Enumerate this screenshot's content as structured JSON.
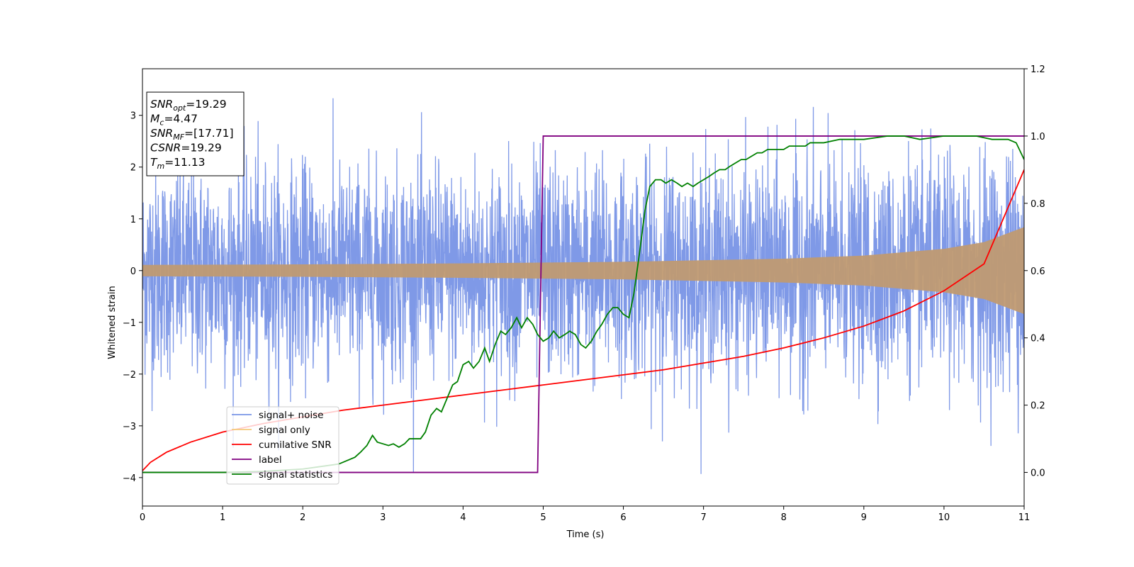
{
  "chart_data": {
    "type": "line",
    "xlabel": "Time (s)",
    "ylabel": "Whitened strain",
    "xlim": [
      0,
      11
    ],
    "ylim": [
      -4.55,
      3.9
    ],
    "y2lim": [
      -0.1,
      1.2
    ],
    "x_ticks": [
      "0",
      "1",
      "2",
      "3",
      "4",
      "5",
      "6",
      "7",
      "8",
      "9",
      "10",
      "11"
    ],
    "y_ticks": [
      "−4",
      "−3",
      "−2",
      "−1",
      "0",
      "1",
      "2",
      "3"
    ],
    "y2_ticks": [
      "0.0",
      "0.2",
      "0.4",
      "0.6",
      "0.8",
      "1.0",
      "1.2"
    ],
    "info_box": {
      "lines": [
        {
          "main": "SNR",
          "sub": "opt",
          "rest": "=19.29"
        },
        {
          "main": "M",
          "sub": "c",
          "rest": "=4.47"
        },
        {
          "main": "SNR",
          "sub": "MF",
          "rest": "=[17.71]"
        },
        {
          "main": "CSNR",
          "sub": "",
          "rest": "=19.29"
        },
        {
          "main": "T",
          "sub": "m",
          "rest": "=11.13"
        }
      ]
    },
    "legend": {
      "position": "lower-left",
      "entries": [
        {
          "label": "signal+ noise",
          "color": "#7894e6"
        },
        {
          "label": "signal only",
          "color": "#f5c97a"
        },
        {
          "label": "cumilative SNR",
          "color": "#ff0000"
        },
        {
          "label": "label",
          "color": "#800080"
        },
        {
          "label": "signal statistics",
          "color": "#008000"
        }
      ]
    },
    "series": [
      {
        "name": "signal+ noise",
        "axis": "left",
        "color": "#7894e6",
        "noise_band_sigma": 1.0,
        "approx_range": [
          -4.15,
          3.5
        ]
      },
      {
        "name": "signal only",
        "axis": "left",
        "color": "#c09a72",
        "envelope": {
          "x": [
            0,
            2,
            4,
            6,
            8,
            9,
            10,
            10.5,
            11
          ],
          "amp": [
            0.11,
            0.12,
            0.14,
            0.17,
            0.23,
            0.29,
            0.42,
            0.55,
            0.84
          ]
        }
      },
      {
        "name": "cumilative SNR",
        "axis": "right",
        "color": "#ff0000",
        "x": [
          0,
          0.1,
          0.3,
          0.6,
          1,
          1.5,
          2,
          2.5,
          3,
          3.5,
          4,
          4.5,
          5,
          5.5,
          6,
          6.5,
          7,
          7.5,
          8,
          8.5,
          9,
          9.5,
          10,
          10.5,
          11
        ],
        "y": [
          0.005,
          0.03,
          0.06,
          0.09,
          0.12,
          0.145,
          0.165,
          0.185,
          0.2,
          0.215,
          0.23,
          0.245,
          0.26,
          0.275,
          0.29,
          0.305,
          0.325,
          0.345,
          0.37,
          0.4,
          0.435,
          0.48,
          0.54,
          0.62,
          0.9
        ]
      },
      {
        "name": "label",
        "axis": "right",
        "color": "#800080",
        "x": [
          0,
          4.93,
          5.0,
          11
        ],
        "y": [
          0.0,
          0.0,
          1.0,
          1.0
        ]
      },
      {
        "name": "signal statistics",
        "axis": "right",
        "color": "#008000",
        "x": [
          0,
          1.0,
          1.5,
          2.0,
          2.3,
          2.45,
          2.55,
          2.65,
          2.72,
          2.8,
          2.87,
          2.93,
          3.0,
          3.07,
          3.13,
          3.2,
          3.27,
          3.33,
          3.4,
          3.47,
          3.53,
          3.6,
          3.67,
          3.73,
          3.8,
          3.87,
          3.93,
          4.0,
          4.07,
          4.13,
          4.2,
          4.27,
          4.33,
          4.4,
          4.47,
          4.53,
          4.6,
          4.67,
          4.73,
          4.8,
          4.87,
          4.93,
          5.0,
          5.07,
          5.13,
          5.2,
          5.27,
          5.33,
          5.4,
          5.47,
          5.53,
          5.6,
          5.67,
          5.73,
          5.8,
          5.87,
          5.93,
          6.0,
          6.07,
          6.13,
          6.2,
          6.27,
          6.33,
          6.4,
          6.47,
          6.53,
          6.6,
          6.67,
          6.73,
          6.8,
          6.87,
          6.93,
          7.0,
          7.07,
          7.13,
          7.2,
          7.27,
          7.33,
          7.4,
          7.47,
          7.53,
          7.6,
          7.67,
          7.73,
          7.8,
          7.87,
          7.93,
          8.0,
          8.07,
          8.13,
          8.2,
          8.27,
          8.33,
          8.5,
          8.7,
          9.0,
          9.3,
          9.5,
          9.7,
          10.0,
          10.2,
          10.4,
          10.6,
          10.8,
          10.9,
          11.0
        ],
        "y": [
          0.0,
          0.0,
          0.003,
          0.01,
          0.02,
          0.025,
          0.035,
          0.045,
          0.06,
          0.08,
          0.11,
          0.09,
          0.085,
          0.08,
          0.085,
          0.075,
          0.085,
          0.1,
          0.1,
          0.1,
          0.12,
          0.17,
          0.19,
          0.18,
          0.22,
          0.26,
          0.27,
          0.32,
          0.33,
          0.31,
          0.33,
          0.37,
          0.33,
          0.38,
          0.42,
          0.41,
          0.43,
          0.46,
          0.43,
          0.46,
          0.44,
          0.41,
          0.39,
          0.4,
          0.42,
          0.4,
          0.41,
          0.42,
          0.41,
          0.38,
          0.37,
          0.39,
          0.42,
          0.44,
          0.47,
          0.49,
          0.49,
          0.47,
          0.46,
          0.53,
          0.65,
          0.78,
          0.85,
          0.87,
          0.87,
          0.86,
          0.87,
          0.86,
          0.85,
          0.86,
          0.85,
          0.86,
          0.87,
          0.88,
          0.89,
          0.9,
          0.9,
          0.91,
          0.92,
          0.93,
          0.93,
          0.94,
          0.95,
          0.95,
          0.96,
          0.96,
          0.96,
          0.96,
          0.97,
          0.97,
          0.97,
          0.97,
          0.98,
          0.98,
          0.99,
          0.99,
          1.0,
          1.0,
          0.99,
          1.0,
          1.0,
          1.0,
          0.99,
          0.99,
          0.98,
          0.93
        ]
      }
    ]
  }
}
